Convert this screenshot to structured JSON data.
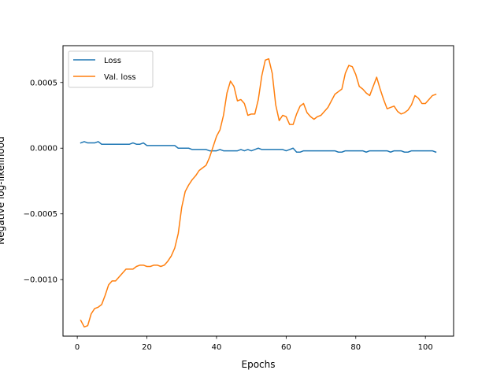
{
  "chart_data": {
    "type": "line",
    "title": "",
    "xlabel": "Epochs",
    "ylabel": "Negative log-likelihood",
    "xlim": [
      -4.1,
      108.1
    ],
    "ylim": [
      -0.00143,
      0.00078
    ],
    "xticks": [
      0,
      20,
      40,
      60,
      80,
      100
    ],
    "xtick_labels": [
      "0",
      "20",
      "40",
      "60",
      "80",
      "100"
    ],
    "yticks": [
      -0.001,
      -0.0005,
      0.0,
      0.0005
    ],
    "ytick_labels": [
      "−0.0010",
      "−0.0005",
      "0.0000",
      "0.0005"
    ],
    "grid": false,
    "legend_position": "top-left",
    "series": [
      {
        "name": "Loss",
        "color": "#1f77b4",
        "x": [
          1,
          2,
          3,
          4,
          5,
          6,
          7,
          8,
          9,
          10,
          11,
          12,
          13,
          14,
          15,
          16,
          17,
          18,
          19,
          20,
          21,
          22,
          23,
          24,
          25,
          26,
          27,
          28,
          29,
          30,
          31,
          32,
          33,
          34,
          35,
          36,
          37,
          38,
          39,
          40,
          41,
          42,
          43,
          44,
          45,
          46,
          47,
          48,
          49,
          50,
          51,
          52,
          53,
          54,
          55,
          56,
          57,
          58,
          59,
          60,
          61,
          62,
          63,
          64,
          65,
          66,
          67,
          68,
          69,
          70,
          71,
          72,
          73,
          74,
          75,
          76,
          77,
          78,
          79,
          80,
          81,
          82,
          83,
          84,
          85,
          86,
          87,
          88,
          89,
          90,
          91,
          92,
          93,
          94,
          95,
          96,
          97,
          98,
          99,
          100,
          101,
          102,
          103
        ],
        "y": [
          4e-05,
          5e-05,
          4e-05,
          4e-05,
          4e-05,
          5e-05,
          3e-05,
          3e-05,
          3e-05,
          3e-05,
          3e-05,
          3e-05,
          3e-05,
          3e-05,
          3e-05,
          4e-05,
          3e-05,
          3e-05,
          4e-05,
          2e-05,
          2e-05,
          2e-05,
          2e-05,
          2e-05,
          2e-05,
          2e-05,
          2e-05,
          2e-05,
          0.0,
          0.0,
          0.0,
          0.0,
          -1e-05,
          -1e-05,
          -1e-05,
          -1e-05,
          -1e-05,
          -2e-05,
          -2e-05,
          -2e-05,
          -1e-05,
          -2e-05,
          -2e-05,
          -2e-05,
          -2e-05,
          -2e-05,
          -1e-05,
          -2e-05,
          -1e-05,
          -2e-05,
          -1e-05,
          0.0,
          -1e-05,
          -1e-05,
          -1e-05,
          -1e-05,
          -1e-05,
          -1e-05,
          -1e-05,
          -2e-05,
          -1e-05,
          0.0,
          -3e-05,
          -3e-05,
          -2e-05,
          -2e-05,
          -2e-05,
          -2e-05,
          -2e-05,
          -2e-05,
          -2e-05,
          -2e-05,
          -2e-05,
          -2e-05,
          -3e-05,
          -3e-05,
          -2e-05,
          -2e-05,
          -2e-05,
          -2e-05,
          -2e-05,
          -2e-05,
          -3e-05,
          -2e-05,
          -2e-05,
          -2e-05,
          -2e-05,
          -2e-05,
          -2e-05,
          -3e-05,
          -2e-05,
          -2e-05,
          -2e-05,
          -3e-05,
          -3e-05,
          -2e-05,
          -2e-05,
          -2e-05,
          -2e-05,
          -2e-05,
          -2e-05,
          -2e-05,
          -3e-05
        ]
      },
      {
        "name": "Val. loss",
        "color": "#ff7f0e",
        "x": [
          1,
          2,
          3,
          4,
          5,
          6,
          7,
          8,
          9,
          10,
          11,
          12,
          13,
          14,
          15,
          16,
          17,
          18,
          19,
          20,
          21,
          22,
          23,
          24,
          25,
          26,
          27,
          28,
          29,
          30,
          31,
          32,
          33,
          34,
          35,
          36,
          37,
          38,
          39,
          40,
          41,
          42,
          43,
          44,
          45,
          46,
          47,
          48,
          49,
          50,
          51,
          52,
          53,
          54,
          55,
          56,
          57,
          58,
          59,
          60,
          61,
          62,
          63,
          64,
          65,
          66,
          67,
          68,
          69,
          70,
          71,
          72,
          73,
          74,
          75,
          76,
          77,
          78,
          79,
          80,
          81,
          82,
          83,
          84,
          85,
          86,
          87,
          88,
          89,
          90,
          91,
          92,
          93,
          94,
          95,
          96,
          97,
          98,
          99,
          100,
          101,
          102,
          103
        ],
        "y": [
          -0.00131,
          -0.00136,
          -0.00135,
          -0.00126,
          -0.00122,
          -0.00121,
          -0.00119,
          -0.00112,
          -0.00104,
          -0.00101,
          -0.00101,
          -0.00098,
          -0.00095,
          -0.00092,
          -0.00092,
          -0.00092,
          -0.0009,
          -0.00089,
          -0.00089,
          -0.0009,
          -0.0009,
          -0.00089,
          -0.00089,
          -0.0009,
          -0.00089,
          -0.00086,
          -0.00082,
          -0.00076,
          -0.00065,
          -0.00045,
          -0.00033,
          -0.00028,
          -0.00024,
          -0.00021,
          -0.00017,
          -0.00015,
          -0.00013,
          -7e-05,
          1e-05,
          9e-05,
          0.00014,
          0.00025,
          0.00042,
          0.00051,
          0.00047,
          0.00036,
          0.00037,
          0.00034,
          0.00025,
          0.00026,
          0.00026,
          0.00037,
          0.00055,
          0.00067,
          0.00068,
          0.00057,
          0.00033,
          0.00021,
          0.00025,
          0.00024,
          0.00018,
          0.00018,
          0.00026,
          0.00032,
          0.00034,
          0.00027,
          0.00024,
          0.00022,
          0.00024,
          0.00025,
          0.00028,
          0.00031,
          0.00036,
          0.00041,
          0.00043,
          0.00045,
          0.00057,
          0.00063,
          0.00062,
          0.00056,
          0.00047,
          0.00045,
          0.00042,
          0.0004,
          0.00047,
          0.00054,
          0.00045,
          0.00037,
          0.0003,
          0.00031,
          0.00032,
          0.00028,
          0.00026,
          0.00027,
          0.00029,
          0.00033,
          0.0004,
          0.00038,
          0.00034,
          0.00034,
          0.00037,
          0.0004,
          0.00041
        ]
      }
    ]
  }
}
